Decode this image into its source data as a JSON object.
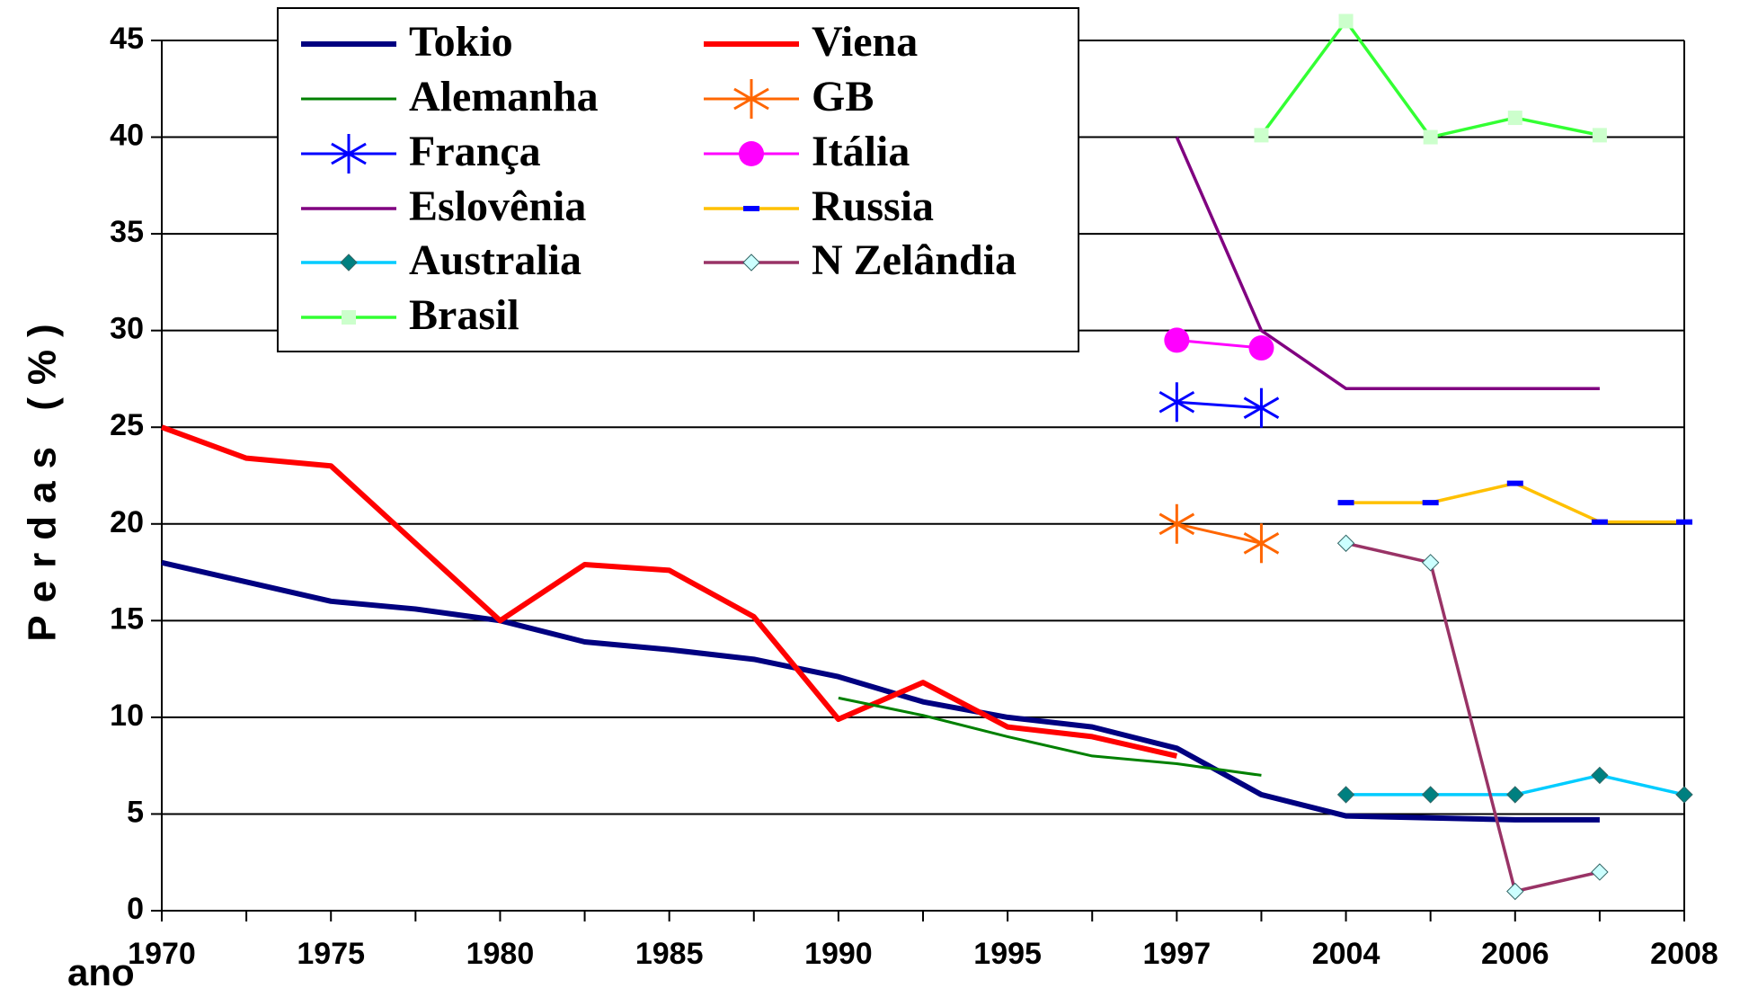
{
  "chart_data": {
    "type": "line",
    "xlabel": "ano",
    "ylabel": "Perdas (%)",
    "categories": [
      "1970",
      null,
      "1975",
      null,
      "1980",
      null,
      "1985",
      null,
      "1990",
      null,
      "1995",
      null,
      "1997",
      null,
      "2004",
      null,
      "2006",
      null,
      "2008"
    ],
    "ylim": [
      0,
      45
    ],
    "yticks": [
      0,
      5,
      10,
      15,
      20,
      25,
      30,
      35,
      40,
      45
    ],
    "grid": true,
    "legend": "top-left",
    "series": [
      {
        "name": "Tokio",
        "color": "#000080",
        "linewidth": 6,
        "marker": "none",
        "values": [
          18,
          17,
          16,
          15.6,
          15,
          13.9,
          13.5,
          13,
          12.1,
          10.8,
          10,
          9.5,
          8.4,
          6,
          4.9,
          4.8,
          4.7,
          4.7,
          null
        ]
      },
      {
        "name": "Viena",
        "color": "#ff0000",
        "linewidth": 6,
        "marker": "none",
        "values": [
          25,
          23.4,
          23,
          19,
          15,
          17.9,
          17.6,
          15.2,
          9.9,
          11.8,
          9.5,
          9,
          8,
          null,
          null,
          null,
          null,
          null,
          null
        ]
      },
      {
        "name": "Alemanha",
        "color": "#008000",
        "linewidth": 3,
        "marker": "none",
        "values": [
          null,
          null,
          null,
          null,
          null,
          null,
          null,
          null,
          11,
          10.1,
          9,
          8,
          7.6,
          7,
          null,
          null,
          null,
          null,
          null
        ]
      },
      {
        "name": "GB",
        "color": "#ff6600",
        "linewidth": 3,
        "marker": "asterisk",
        "marker_color": "#ff6600",
        "values": [
          null,
          null,
          null,
          null,
          null,
          null,
          null,
          null,
          null,
          null,
          null,
          null,
          20,
          19,
          null,
          null,
          null,
          null,
          null
        ]
      },
      {
        "name": "França",
        "color": "#0000ff",
        "linewidth": 3,
        "marker": "asterisk",
        "marker_color": "#0000ff",
        "values": [
          null,
          null,
          null,
          null,
          null,
          null,
          null,
          null,
          null,
          null,
          null,
          null,
          26.3,
          26,
          null,
          null,
          null,
          null,
          null
        ]
      },
      {
        "name": "Itália",
        "color": "#ff00ff",
        "linewidth": 3,
        "marker": "circle",
        "marker_color": "#ff00ff",
        "values": [
          null,
          null,
          null,
          null,
          null,
          null,
          null,
          null,
          null,
          null,
          null,
          null,
          29.5,
          29.1,
          null,
          null,
          null,
          null,
          null
        ]
      },
      {
        "name": "Eslovênia",
        "color": "#800080",
        "linewidth": 3.5,
        "marker": "none",
        "values": [
          null,
          null,
          null,
          null,
          null,
          null,
          null,
          null,
          null,
          null,
          null,
          null,
          40,
          30,
          27,
          27,
          27,
          27,
          null
        ]
      },
      {
        "name": "Russia",
        "color": "#ffc000",
        "linewidth": 3.5,
        "marker": "dash",
        "marker_color": "#0000ff",
        "values": [
          null,
          null,
          null,
          null,
          null,
          null,
          null,
          null,
          null,
          null,
          null,
          null,
          null,
          null,
          21.1,
          21.1,
          22.1,
          20.1,
          20.1
        ]
      },
      {
        "name": "Australia",
        "color": "#00ccff",
        "linewidth": 3.5,
        "marker": "diamond",
        "marker_color": "#008080",
        "values": [
          null,
          null,
          null,
          null,
          null,
          null,
          null,
          null,
          null,
          null,
          null,
          null,
          null,
          null,
          6,
          6,
          6,
          7,
          6
        ]
      },
      {
        "name": "N Zelândia",
        "color": "#993366",
        "linewidth": 3.5,
        "marker": "diamond",
        "marker_color": "#ccffff",
        "values": [
          null,
          null,
          null,
          null,
          null,
          null,
          null,
          null,
          null,
          null,
          null,
          null,
          null,
          null,
          19,
          18,
          1,
          2,
          null
        ]
      },
      {
        "name": "Brasil",
        "color": "#33ff33",
        "linewidth": 3.5,
        "marker": "square",
        "marker_color": "#ccffcc",
        "values": [
          null,
          null,
          null,
          null,
          null,
          null,
          null,
          null,
          null,
          null,
          null,
          null,
          null,
          40.1,
          46,
          40,
          41,
          40.1,
          null
        ]
      }
    ]
  }
}
